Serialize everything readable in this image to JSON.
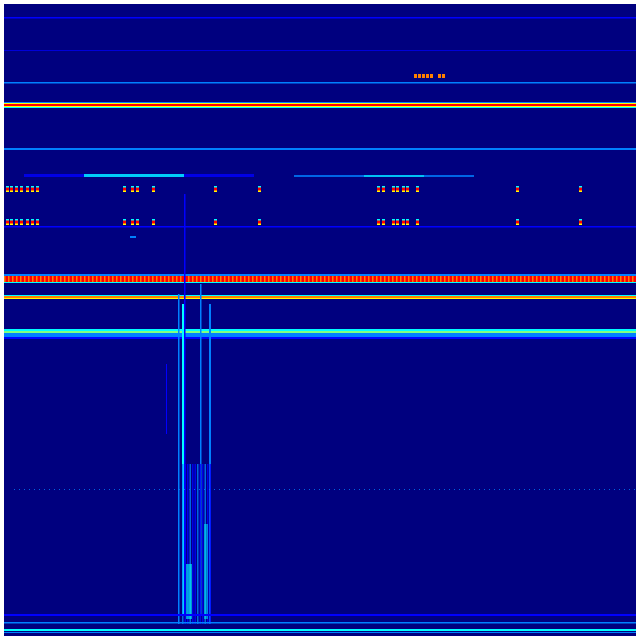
{
  "colors": {
    "background": "#00007f",
    "low": "#0000ff",
    "mid_low": "#0080ff",
    "mid": "#00ffff",
    "mid_high": "#80ff80",
    "high": "#ffff00",
    "higher": "#ff8000",
    "max": "#ff0000",
    "border": "#ffffff"
  },
  "colormap": "jet"
}
